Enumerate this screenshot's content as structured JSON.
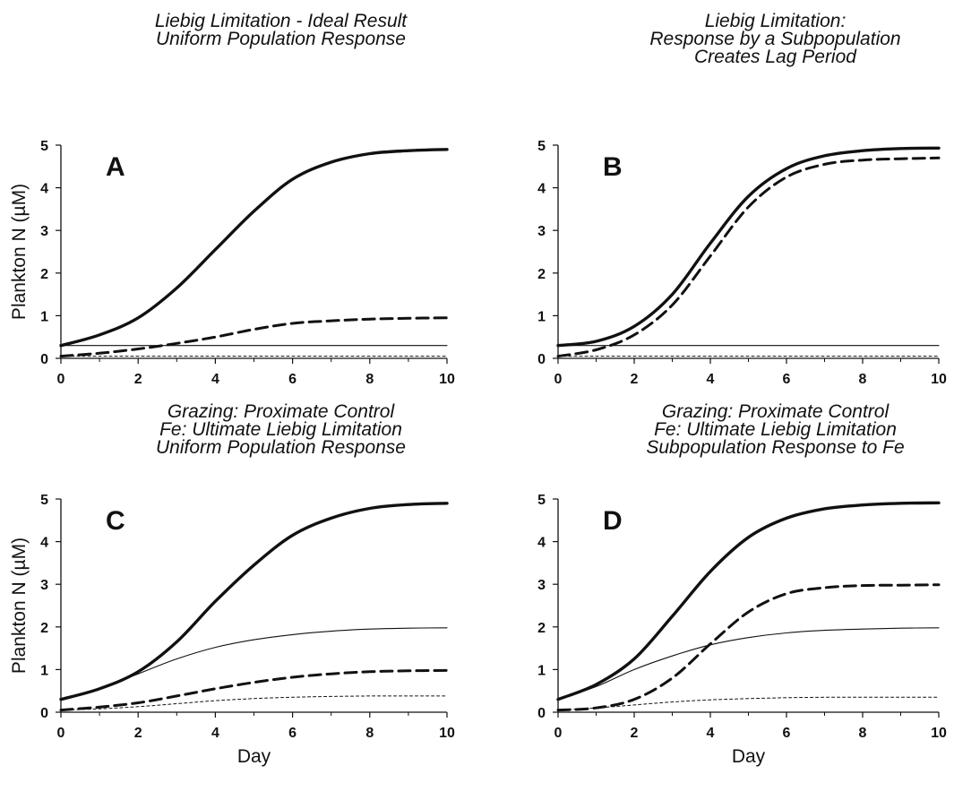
{
  "chart_data": [
    {
      "type": "line",
      "panel_label": "A",
      "title_lines": [
        "Liebig Limitation - Ideal Result",
        "Uniform Population Response"
      ],
      "xlabel": "",
      "ylabel": "Plankton N (µM)",
      "xlim": [
        0,
        10
      ],
      "ylim": [
        0,
        5
      ],
      "xticks": [
        "0",
        "2",
        "4",
        "6",
        "8",
        "10"
      ],
      "yticks": [
        "0",
        "1",
        "2",
        "3",
        "4",
        "5"
      ],
      "x": [
        0,
        1,
        2,
        3,
        4,
        5,
        6,
        7,
        8,
        9,
        10
      ],
      "series": [
        {
          "style": "thick-solid",
          "values": [
            0.3,
            0.55,
            0.95,
            1.65,
            2.55,
            3.45,
            4.2,
            4.6,
            4.8,
            4.87,
            4.9
          ]
        },
        {
          "style": "thick-dashed",
          "values": [
            0.05,
            0.12,
            0.22,
            0.35,
            0.5,
            0.68,
            0.82,
            0.88,
            0.92,
            0.94,
            0.95
          ]
        },
        {
          "style": "thin-solid",
          "values": [
            0.3,
            0.3,
            0.3,
            0.3,
            0.3,
            0.3,
            0.3,
            0.3,
            0.3,
            0.3,
            0.3
          ]
        },
        {
          "style": "thin-dotted",
          "values": [
            0.05,
            0.05,
            0.05,
            0.05,
            0.05,
            0.05,
            0.05,
            0.05,
            0.05,
            0.05,
            0.05
          ]
        }
      ]
    },
    {
      "type": "line",
      "panel_label": "B",
      "title_lines": [
        "Liebig Limitation:",
        "Response by a Subpopulation",
        "Creates Lag Period"
      ],
      "xlabel": "",
      "ylabel": "",
      "xlim": [
        0,
        10
      ],
      "ylim": [
        0,
        5
      ],
      "xticks": [
        "0",
        "2",
        "4",
        "6",
        "8",
        "10"
      ],
      "yticks": [
        "0",
        "1",
        "2",
        "3",
        "4",
        "5"
      ],
      "x": [
        0,
        1,
        2,
        3,
        4,
        5,
        6,
        7,
        8,
        9,
        10
      ],
      "series": [
        {
          "style": "thick-solid",
          "values": [
            0.3,
            0.4,
            0.75,
            1.5,
            2.7,
            3.8,
            4.45,
            4.75,
            4.87,
            4.92,
            4.93
          ]
        },
        {
          "style": "thick-dashed",
          "values": [
            0.05,
            0.2,
            0.55,
            1.25,
            2.4,
            3.55,
            4.25,
            4.55,
            4.65,
            4.68,
            4.7
          ]
        },
        {
          "style": "thin-solid",
          "values": [
            0.3,
            0.3,
            0.3,
            0.3,
            0.3,
            0.3,
            0.3,
            0.3,
            0.3,
            0.3,
            0.3
          ]
        },
        {
          "style": "thin-dotted",
          "values": [
            0.05,
            0.05,
            0.05,
            0.05,
            0.05,
            0.05,
            0.05,
            0.05,
            0.05,
            0.05,
            0.05
          ]
        }
      ]
    },
    {
      "type": "line",
      "panel_label": "C",
      "title_lines": [
        "Grazing: Proximate Control",
        "Fe: Ultimate Liebig Limitation",
        "Uniform Population Response"
      ],
      "xlabel": "Day",
      "ylabel": "Plankton N (µM)",
      "xlim": [
        0,
        10
      ],
      "ylim": [
        0,
        5
      ],
      "xticks": [
        "0",
        "2",
        "4",
        "6",
        "8",
        "10"
      ],
      "yticks": [
        "0",
        "1",
        "2",
        "3",
        "4",
        "5"
      ],
      "x": [
        0,
        1,
        2,
        3,
        4,
        5,
        6,
        7,
        8,
        9,
        10
      ],
      "series": [
        {
          "style": "thick-solid",
          "values": [
            0.3,
            0.55,
            0.95,
            1.65,
            2.6,
            3.45,
            4.15,
            4.55,
            4.78,
            4.87,
            4.9
          ]
        },
        {
          "style": "thin-solid",
          "values": [
            0.3,
            0.55,
            0.9,
            1.25,
            1.52,
            1.7,
            1.82,
            1.9,
            1.95,
            1.97,
            1.98
          ]
        },
        {
          "style": "thick-dashed",
          "values": [
            0.05,
            0.12,
            0.22,
            0.38,
            0.55,
            0.7,
            0.82,
            0.9,
            0.95,
            0.97,
            0.98
          ]
        },
        {
          "style": "thin-dotted",
          "values": [
            0.05,
            0.08,
            0.13,
            0.2,
            0.27,
            0.32,
            0.35,
            0.37,
            0.38,
            0.38,
            0.38
          ]
        }
      ]
    },
    {
      "type": "line",
      "panel_label": "D",
      "title_lines": [
        "Grazing: Proximate Control",
        "Fe: Ultimate Liebig Limitation",
        "Subpopulation Response to Fe"
      ],
      "xlabel": "Day",
      "ylabel": "",
      "xlim": [
        0,
        10
      ],
      "ylim": [
        0,
        5
      ],
      "xticks": [
        "0",
        "2",
        "4",
        "6",
        "8",
        "10"
      ],
      "yticks": [
        "0",
        "1",
        "2",
        "3",
        "4",
        "5"
      ],
      "x": [
        0,
        1,
        2,
        3,
        4,
        5,
        6,
        7,
        8,
        9,
        10
      ],
      "series": [
        {
          "style": "thick-solid",
          "values": [
            0.3,
            0.65,
            1.25,
            2.25,
            3.3,
            4.1,
            4.55,
            4.77,
            4.86,
            4.9,
            4.91
          ]
        },
        {
          "style": "thin-solid",
          "values": [
            0.3,
            0.6,
            1.0,
            1.32,
            1.58,
            1.75,
            1.86,
            1.92,
            1.95,
            1.97,
            1.98
          ]
        },
        {
          "style": "thick-dashed",
          "values": [
            0.05,
            0.1,
            0.3,
            0.8,
            1.6,
            2.35,
            2.78,
            2.92,
            2.97,
            2.98,
            2.99
          ]
        },
        {
          "style": "thin-dotted",
          "values": [
            0.05,
            0.1,
            0.17,
            0.24,
            0.29,
            0.32,
            0.34,
            0.35,
            0.35,
            0.35,
            0.35
          ]
        }
      ]
    }
  ]
}
